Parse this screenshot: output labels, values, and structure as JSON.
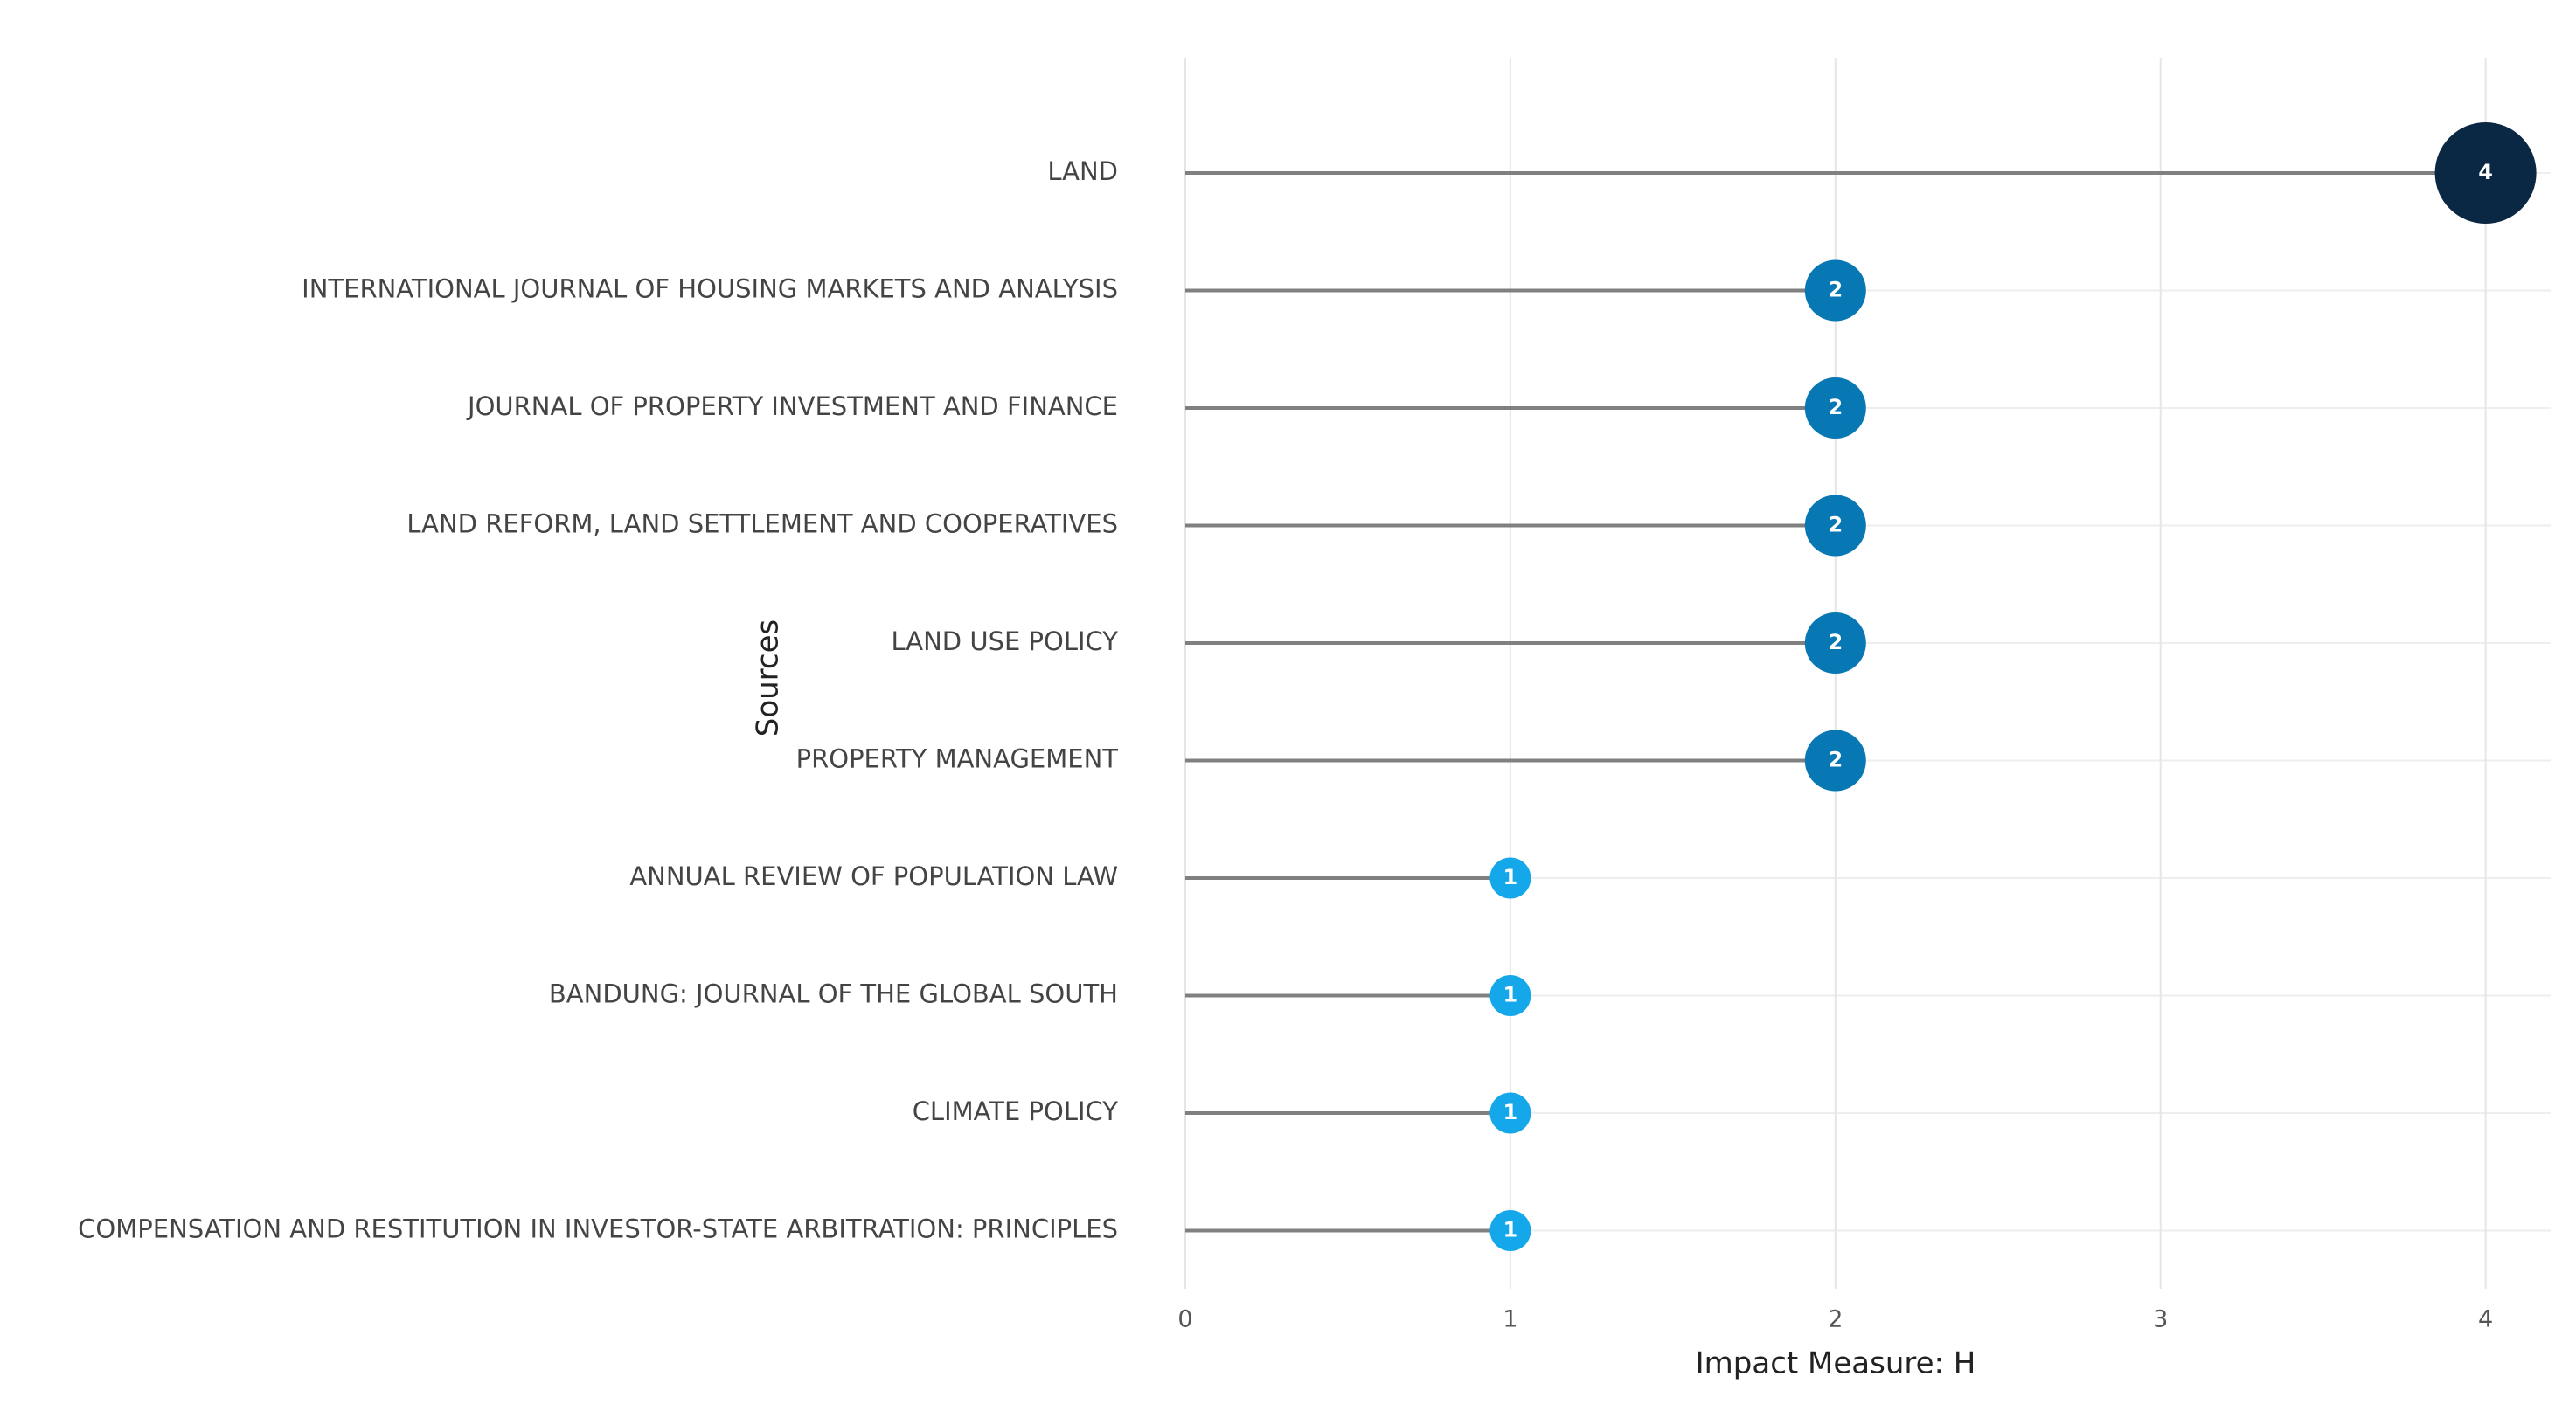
{
  "chart_data": {
    "type": "lollipop",
    "x_label": "Impact Measure: H",
    "y_label": "Sources",
    "categories": [
      "LAND",
      "INTERNATIONAL JOURNAL OF HOUSING MARKETS AND ANALYSIS",
      "JOURNAL OF PROPERTY INVESTMENT AND FINANCE",
      "LAND REFORM, LAND SETTLEMENT AND COOPERATIVES",
      "LAND USE POLICY",
      "PROPERTY MANAGEMENT",
      "ANNUAL REVIEW OF POPULATION LAW",
      "BANDUNG: JOURNAL OF THE GLOBAL SOUTH",
      "CLIMATE POLICY",
      "COMPENSATION AND RESTITUTION IN INVESTOR-STATE ARBITRATION: PRINCIPLES"
    ],
    "values": [
      4,
      2,
      2,
      2,
      2,
      2,
      1,
      1,
      1,
      1
    ],
    "colors": [
      "#0a2744",
      "#0878b4",
      "#0878b4",
      "#0878b4",
      "#0878b4",
      "#0878b4",
      "#14a8ea",
      "#14a8ea",
      "#14a8ea",
      "#14a8ea"
    ],
    "stem_color": "#808080",
    "xlim": [
      0,
      4.2
    ],
    "xticks": [
      0,
      1,
      2,
      3,
      4
    ],
    "grid": true
  }
}
